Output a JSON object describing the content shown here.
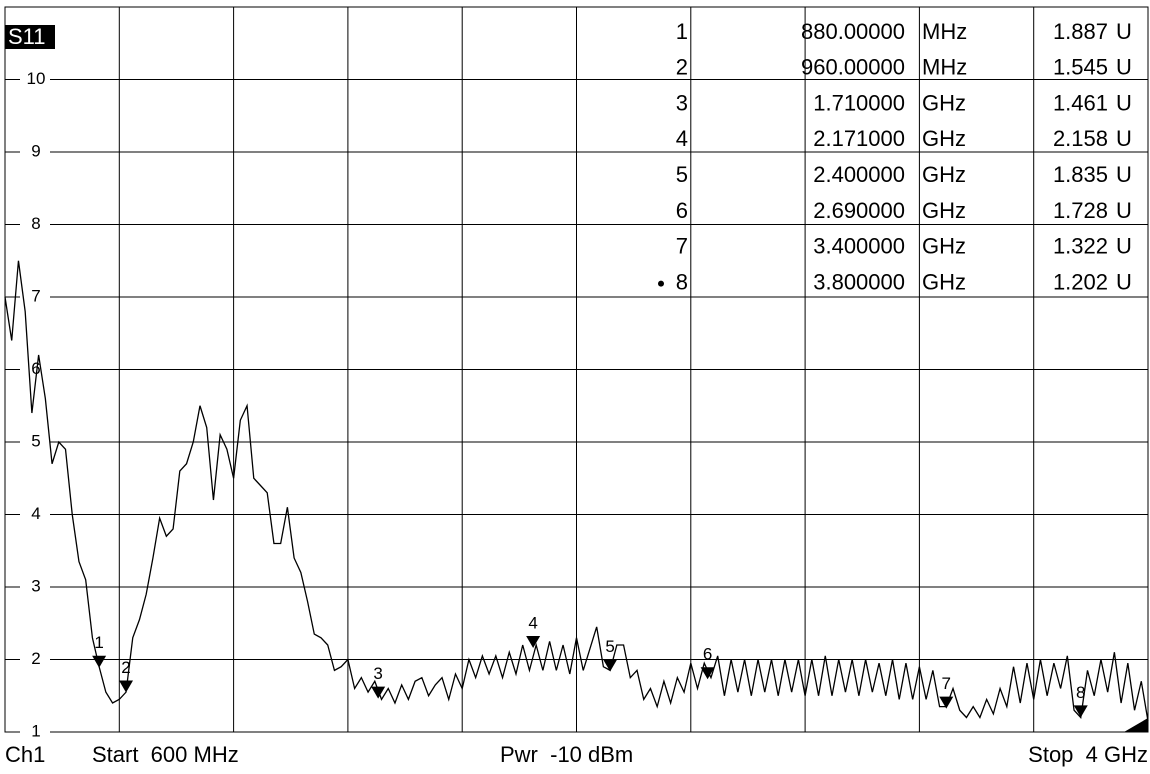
{
  "chart_data": {
    "type": "line",
    "series": [
      {
        "name": "S11",
        "color": "#000000",
        "values": [
          7.0,
          6.4,
          7.5,
          6.8,
          5.4,
          6.2,
          5.6,
          4.7,
          5.0,
          4.9,
          4.0,
          3.35,
          3.1,
          2.3,
          1.9,
          1.55,
          1.4,
          1.45,
          1.55,
          2.3,
          2.55,
          2.9,
          3.4,
          3.95,
          3.7,
          3.8,
          4.6,
          4.7,
          5.0,
          5.5,
          5.2,
          4.2,
          5.1,
          4.9,
          4.5,
          5.3,
          5.5,
          4.5,
          4.4,
          4.3,
          3.6,
          3.6,
          4.1,
          3.4,
          3.2,
          2.8,
          2.35,
          2.3,
          2.2,
          1.85,
          1.9,
          2.0,
          1.6,
          1.75,
          1.55,
          1.7,
          1.45,
          1.6,
          1.4,
          1.65,
          1.45,
          1.7,
          1.75,
          1.5,
          1.65,
          1.75,
          1.45,
          1.8,
          1.6,
          2.0,
          1.75,
          2.05,
          1.8,
          2.05,
          1.75,
          2.1,
          1.8,
          2.2,
          1.85,
          2.2,
          1.85,
          2.25,
          1.85,
          2.2,
          1.8,
          2.3,
          1.85,
          2.15,
          2.45,
          1.9,
          1.85,
          2.2,
          2.2,
          1.75,
          1.85,
          1.45,
          1.6,
          1.35,
          1.7,
          1.4,
          1.75,
          1.55,
          1.95,
          1.6,
          1.95,
          1.75,
          2.05,
          1.5,
          2.0,
          1.55,
          2.0,
          1.5,
          2.0,
          1.55,
          2.0,
          1.5,
          2.0,
          1.55,
          2.0,
          1.5,
          2.0,
          1.5,
          2.05,
          1.5,
          2.0,
          1.55,
          2.0,
          1.5,
          2.0,
          1.55,
          1.95,
          1.5,
          2.0,
          1.45,
          1.95,
          1.45,
          1.9,
          1.45,
          1.85,
          1.35,
          1.35,
          1.6,
          1.3,
          1.2,
          1.35,
          1.2,
          1.45,
          1.25,
          1.6,
          1.35,
          1.9,
          1.4,
          1.95,
          1.45,
          2.0,
          1.5,
          1.95,
          1.6,
          2.05,
          1.3,
          1.2,
          1.85,
          1.5,
          2.0,
          1.55,
          2.1,
          1.4,
          1.95,
          1.3,
          1.7,
          1.15
        ]
      }
    ],
    "x": [
      600,
      620,
      640,
      660,
      680,
      700,
      720,
      740,
      760,
      780,
      800,
      820,
      840,
      860,
      880,
      900,
      920,
      940,
      960,
      980,
      1000,
      1020,
      1040,
      1060,
      1080,
      1100,
      1120,
      1140,
      1160,
      1180,
      1200,
      1220,
      1240,
      1260,
      1280,
      1300,
      1320,
      1340,
      1360,
      1380,
      1400,
      1420,
      1440,
      1460,
      1480,
      1500,
      1520,
      1540,
      1560,
      1580,
      1600,
      1620,
      1640,
      1660,
      1680,
      1700,
      1720,
      1740,
      1760,
      1780,
      1800,
      1820,
      1840,
      1860,
      1880,
      1900,
      1920,
      1940,
      1960,
      1980,
      2000,
      2020,
      2040,
      2060,
      2080,
      2100,
      2120,
      2140,
      2160,
      2180,
      2200,
      2220,
      2240,
      2260,
      2280,
      2300,
      2320,
      2340,
      2360,
      2380,
      2400,
      2420,
      2440,
      2460,
      2480,
      2500,
      2520,
      2540,
      2560,
      2580,
      2600,
      2620,
      2640,
      2660,
      2680,
      2700,
      2720,
      2740,
      2760,
      2780,
      2800,
      2820,
      2840,
      2860,
      2880,
      2900,
      2920,
      2940,
      2960,
      2980,
      3000,
      3020,
      3040,
      3060,
      3080,
      3100,
      3120,
      3140,
      3160,
      3180,
      3200,
      3220,
      3240,
      3260,
      3280,
      3300,
      3320,
      3340,
      3360,
      3380,
      3400,
      3420,
      3440,
      3460,
      3480,
      3500,
      3520,
      3540,
      3560,
      3580,
      3600,
      3620,
      3640,
      3660,
      3680,
      3700,
      3720,
      3740,
      3760,
      3780,
      3800,
      3820,
      3840,
      3860,
      3880,
      3900,
      3920,
      3940,
      3960,
      3980,
      4000
    ],
    "xlim": [
      600,
      4000
    ],
    "xticks": [
      600,
      940,
      1280,
      1620,
      1960,
      2300,
      2640,
      2980,
      3320,
      3660,
      4000
    ],
    "ylim": [
      1,
      11
    ],
    "yticks": [
      1,
      2,
      3,
      4,
      5,
      6,
      7,
      8,
      9,
      10
    ],
    "grid": true,
    "active_marker": "8",
    "markers": [
      {
        "name": "1",
        "x": 880,
        "x_label": "880.00000",
        "x_unit": "MHz",
        "value": 1.887,
        "value_unit": "U"
      },
      {
        "name": "2",
        "x": 960,
        "x_label": "960.00000",
        "x_unit": "MHz",
        "value": 1.545,
        "value_unit": "U"
      },
      {
        "name": "3",
        "x": 1710,
        "x_label": "1.710000",
        "x_unit": "GHz",
        "value": 1.461,
        "value_unit": "U"
      },
      {
        "name": "4",
        "x": 2171,
        "x_label": "2.171000",
        "x_unit": "GHz",
        "value": 2.158,
        "value_unit": "U"
      },
      {
        "name": "5",
        "x": 2400,
        "x_label": "2.400000",
        "x_unit": "GHz",
        "value": 1.835,
        "value_unit": "U"
      },
      {
        "name": "6",
        "x": 2690,
        "x_label": "2.690000",
        "x_unit": "GHz",
        "value": 1.728,
        "value_unit": "U"
      },
      {
        "name": "7",
        "x": 3400,
        "x_label": "3.400000",
        "x_unit": "GHz",
        "value": 1.322,
        "value_unit": "U"
      },
      {
        "name": "8",
        "x": 3800,
        "x_label": "3.800000",
        "x_unit": "GHz",
        "value": 1.202,
        "value_unit": "U"
      }
    ],
    "footer": {
      "channel": "Ch1",
      "start": "Start  600 MHz",
      "power": "Pwr  -10 dBm",
      "stop": "Stop  4 GHz"
    }
  }
}
